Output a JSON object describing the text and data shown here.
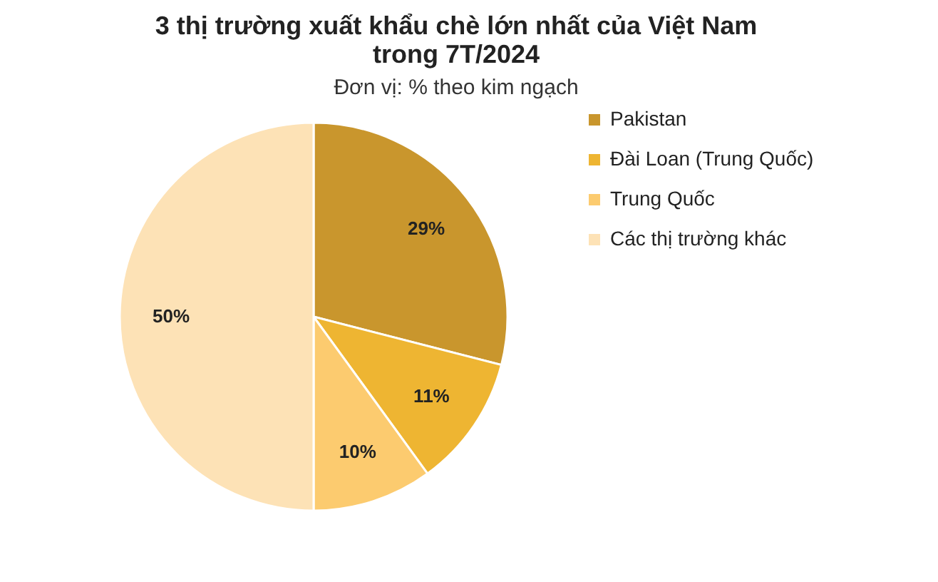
{
  "chart_data": {
    "type": "pie",
    "title": "3 thị trường xuất khẩu chè lớn nhất của Việt Nam\ntrong 7T/2024",
    "subtitle": "Đơn vị: % theo kim ngạch",
    "categories": [
      "Pakistan",
      "Đài Loan (Trung Quốc)",
      "Trung Quốc",
      "Các thị trường khác"
    ],
    "values": [
      29,
      11,
      10,
      50
    ],
    "colors": [
      "#c9962d",
      "#eeb532",
      "#fccb6f",
      "#fde2b6"
    ],
    "value_labels": [
      "29%",
      "11%",
      "10%",
      "50%"
    ],
    "legend": "right"
  }
}
